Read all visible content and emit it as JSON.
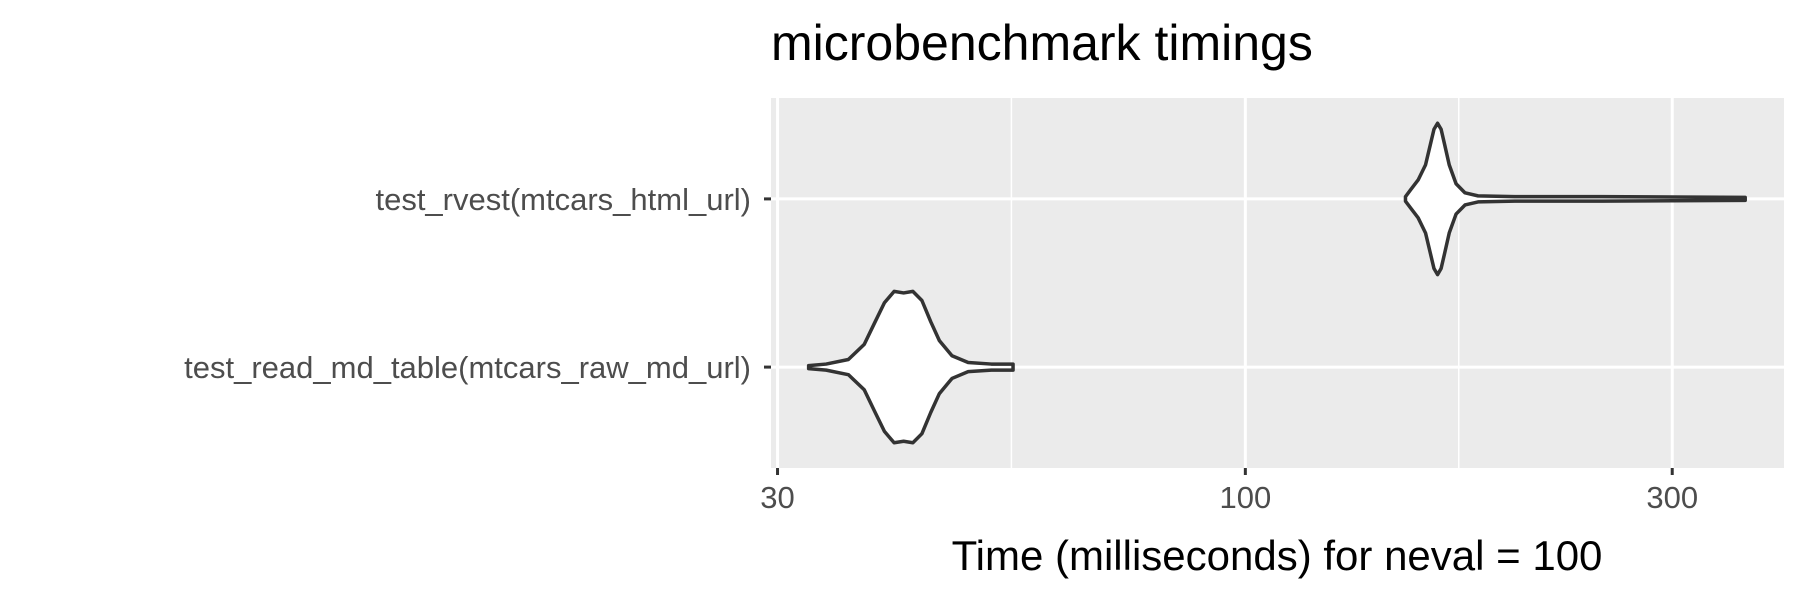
{
  "chart_data": {
    "type": "violin",
    "orientation": "horizontal",
    "title": "microbenchmark timings",
    "xlabel": "Time (milliseconds) for neval = 100",
    "ylabel": "",
    "x_scale": "log10",
    "xlim": [
      29.5,
      400
    ],
    "x_ticks": [
      30,
      100,
      300
    ],
    "x_minor_ticks": [
      54.77,
      173.2
    ],
    "x_tick_labels": [
      "30",
      "100",
      "300"
    ],
    "categories": [
      "test_rvest(mtcars_html_url)",
      "test_read_md_table(mtcars_raw_md_url)"
    ],
    "series": [
      {
        "category": "test_rvest(mtcars_html_url)",
        "min": 151,
        "max": 362,
        "density": [
          [
            151,
            0.03
          ],
          [
            153,
            0.12
          ],
          [
            156,
            0.25
          ],
          [
            159,
            0.45
          ],
          [
            161,
            0.72
          ],
          [
            162.5,
            0.92
          ],
          [
            164,
            1.0
          ],
          [
            165.5,
            0.92
          ],
          [
            167,
            0.72
          ],
          [
            169,
            0.45
          ],
          [
            172,
            0.2
          ],
          [
            176,
            0.08
          ],
          [
            182,
            0.04
          ],
          [
            200,
            0.03
          ],
          [
            250,
            0.03
          ],
          [
            300,
            0.025
          ],
          [
            362,
            0.02
          ]
        ]
      },
      {
        "category": "test_read_md_table(mtcars_raw_md_url)",
        "min": 32.5,
        "max": 55,
        "density": [
          [
            32.5,
            0.02
          ],
          [
            34,
            0.04
          ],
          [
            36,
            0.1
          ],
          [
            37.5,
            0.3
          ],
          [
            38.5,
            0.58
          ],
          [
            39.5,
            0.85
          ],
          [
            40.5,
            1.0
          ],
          [
            41.5,
            0.98
          ],
          [
            42.5,
            1.0
          ],
          [
            43.5,
            0.88
          ],
          [
            44.5,
            0.6
          ],
          [
            45.5,
            0.35
          ],
          [
            47,
            0.15
          ],
          [
            49,
            0.06
          ],
          [
            52,
            0.04
          ],
          [
            55,
            0.04
          ]
        ]
      }
    ],
    "grid": true,
    "legend": "none",
    "colors": {
      "panel": "#ebebeb",
      "grid": "#ffffff",
      "violin_fill": "#ffffff",
      "violin_stroke": "#333333",
      "tick": "#333333",
      "tick_label": "#4d4d4d"
    }
  }
}
